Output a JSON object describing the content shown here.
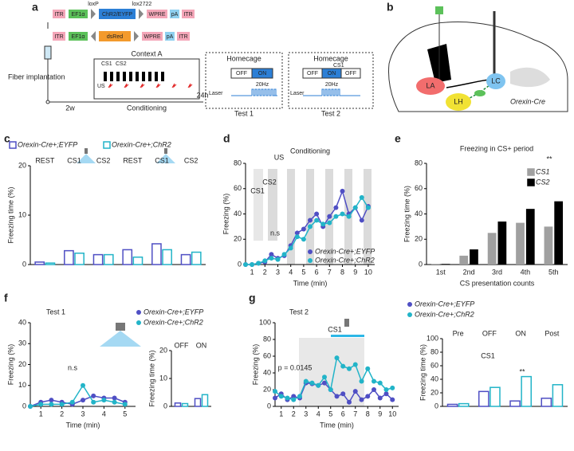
{
  "panel_a": {
    "letter": "a",
    "construct_top": [
      "ITR",
      "EF1α",
      "ChR2/EYFP",
      "WPRE",
      "pA",
      "ITR"
    ],
    "sites": [
      "loxP",
      "lox2722"
    ],
    "construct_bottom": [
      "ITR",
      "EF1α",
      "dsRed",
      "WPRE",
      "pA",
      "ITR"
    ],
    "surgery": "Fiber implantation",
    "interval1": "2w",
    "context": "Context A",
    "cs": [
      "CS1",
      "CS2"
    ],
    "us": "US",
    "conditioning": "Conditioning",
    "interval2": "24h",
    "test1": {
      "place": "Homecage",
      "off": "OFF",
      "on": "ON",
      "freq": "20Hz",
      "laser": "Laser",
      "name": "Test 1"
    },
    "test2": {
      "place": "Homecage",
      "cs": "CS1",
      "off1": "OFF",
      "on": "ON",
      "off2": "OFF",
      "freq": "20Hz",
      "laser": "Laser",
      "name": "Test 2"
    }
  },
  "panel_b": {
    "letter": "b",
    "regions": [
      "LA",
      "LH",
      "LC"
    ],
    "label": "Orexin-Cre"
  },
  "chart_data": [
    {
      "type": "bar",
      "panel": "c",
      "ylabel": "Freezing time (%)",
      "categories": [
        "REST",
        "CS1",
        "CS2",
        "REST",
        "CS1",
        "CS2"
      ],
      "series": [
        {
          "name": "Orexin-Cre+;EYFP",
          "color": "#4f4fc4",
          "values": [
            0.5,
            2.8,
            2.0,
            3.0,
            4.2,
            2.0
          ]
        },
        {
          "name": "Orexin-Cre+;ChR2",
          "color": "#22b4c8",
          "values": [
            0.3,
            2.3,
            2.0,
            1.5,
            3.0,
            2.5
          ]
        }
      ],
      "ylim": [
        0,
        20
      ],
      "yticks": [
        0,
        10,
        20
      ]
    },
    {
      "type": "line",
      "panel": "d",
      "title": "Conditioning",
      "xlabel": "Time (min)",
      "ylabel": "Freezing (%)",
      "x": [
        0.5,
        1,
        1.5,
        2,
        2.5,
        3,
        3.5,
        4,
        4.5,
        5,
        5.5,
        6,
        6.5,
        7,
        7.5,
        8,
        8.5,
        9,
        9.5,
        10
      ],
      "series": [
        {
          "name": "Orexin-Cre+;EYFP",
          "color": "#4f4fc4",
          "values": [
            0,
            0,
            1,
            2,
            8,
            5,
            7,
            15,
            25,
            28,
            35,
            40,
            30,
            38,
            45,
            58,
            40,
            45,
            35,
            46
          ]
        },
        {
          "name": "Orexin-Cre+;ChR2",
          "color": "#22b4c8",
          "values": [
            0,
            0,
            1,
            3,
            5,
            4,
            8,
            13,
            22,
            20,
            30,
            35,
            32,
            33,
            38,
            40,
            38,
            45,
            53,
            45
          ]
        }
      ],
      "xlim": [
        0.5,
        10.5
      ],
      "xticks": [
        1,
        2,
        3,
        4,
        5,
        6,
        7,
        8,
        9,
        10
      ],
      "ylim": [
        0,
        80
      ],
      "yticks": [
        0,
        20,
        40,
        60,
        80
      ],
      "annotations": [
        "US",
        "CS1",
        "CS2",
        "n.s"
      ]
    },
    {
      "type": "bar",
      "panel": "e",
      "title": "Freezing in CS+ period",
      "xlabel": "CS presentation counts",
      "ylabel": "Freezing time (%)",
      "categories": [
        "1st",
        "2nd",
        "3rd",
        "4th",
        "5th"
      ],
      "series": [
        {
          "name": "CS1",
          "color": "#a0a0a0",
          "values": [
            0.5,
            7,
            25,
            33,
            30
          ]
        },
        {
          "name": "CS2",
          "color": "#000000",
          "values": [
            0.5,
            12,
            34,
            44,
            50
          ]
        }
      ],
      "ylim": [
        0,
        80
      ],
      "yticks": [
        0,
        20,
        40,
        60,
        80
      ],
      "annotations": [
        "**"
      ]
    },
    {
      "type": "line",
      "panel": "f",
      "title": "Test 1",
      "xlabel": "Time (min)",
      "ylabel": "Freezing (%)",
      "x": [
        0.5,
        1,
        1.5,
        2,
        2.5,
        3,
        3.5,
        4,
        4.5,
        5
      ],
      "series": [
        {
          "name": "Orexin-Cre+;EYFP",
          "color": "#4f4fc4",
          "values": [
            0,
            2,
            3,
            2,
            1,
            3,
            5,
            4,
            4,
            2
          ]
        },
        {
          "name": "Orexin-Cre+;ChR2",
          "color": "#22b4c8",
          "values": [
            0,
            1,
            1,
            1,
            2,
            10,
            2,
            3,
            2,
            1
          ]
        }
      ],
      "xlim": [
        0.5,
        5.5
      ],
      "xticks": [
        1,
        2,
        3,
        4,
        5
      ],
      "ylim": [
        0,
        40
      ],
      "yticks": [
        0,
        10,
        20,
        30,
        40
      ],
      "annotations": [
        "n.s"
      ]
    },
    {
      "type": "bar",
      "ylabel": "Freezing time (%)",
      "categories": [
        "OFF",
        "ON"
      ],
      "series": [
        {
          "name": "Orexin-Cre+;EYFP",
          "color": "#4f4fc4",
          "values": [
            1.2,
            2.8
          ]
        },
        {
          "name": "Orexin-Cre+;ChR2",
          "color": "#22b4c8",
          "values": [
            1.0,
            4.2
          ]
        }
      ],
      "ylim": [
        0,
        20
      ],
      "yticks": [
        0,
        10,
        20
      ]
    },
    {
      "type": "line",
      "panel": "g",
      "title": "Test 2",
      "xlabel": "Time (min)",
      "ylabel": "Freezing (%)",
      "x": [
        0.5,
        1,
        1.5,
        2,
        2.5,
        3,
        3.5,
        4,
        4.5,
        5,
        5.5,
        6,
        6.5,
        7,
        7.5,
        8,
        8.5,
        9,
        9.5,
        10
      ],
      "series": [
        {
          "name": "Orexin-Cre+;EYFP",
          "color": "#4f4fc4",
          "values": [
            10,
            15,
            8,
            12,
            10,
            28,
            27,
            25,
            28,
            20,
            12,
            15,
            5,
            18,
            8,
            12,
            20,
            10,
            15,
            8
          ]
        },
        {
          "name": "Orexin-Cre+;ChR2",
          "color": "#22b4c8",
          "values": [
            18,
            12,
            10,
            8,
            12,
            30,
            28,
            25,
            35,
            20,
            58,
            48,
            45,
            50,
            30,
            45,
            30,
            28,
            20,
            22
          ]
        }
      ],
      "xlim": [
        0.5,
        10.5
      ],
      "xticks": [
        1,
        2,
        3,
        4,
        5,
        6,
        7,
        8,
        9,
        10
      ],
      "ylim": [
        0,
        100
      ],
      "yticks": [
        0,
        20,
        40,
        60,
        80,
        100
      ],
      "annotations": [
        "CS1",
        "p = 0.0145"
      ]
    },
    {
      "type": "bar",
      "ylabel": "Freezing time (%)",
      "categories": [
        "Pre",
        "OFF",
        "ON",
        "Post"
      ],
      "series": [
        {
          "name": "Orexin-Cre+;EYFP",
          "color": "#4f4fc4",
          "values": [
            3,
            22,
            8,
            12
          ]
        },
        {
          "name": "Orexin-Cre+;ChR2",
          "color": "#22b4c8",
          "values": [
            4,
            28,
            44,
            32
          ]
        }
      ],
      "ylim": [
        0,
        100
      ],
      "yticks": [
        0,
        20,
        40,
        60,
        80,
        100
      ],
      "annotations": [
        "CS1",
        "**"
      ]
    }
  ]
}
